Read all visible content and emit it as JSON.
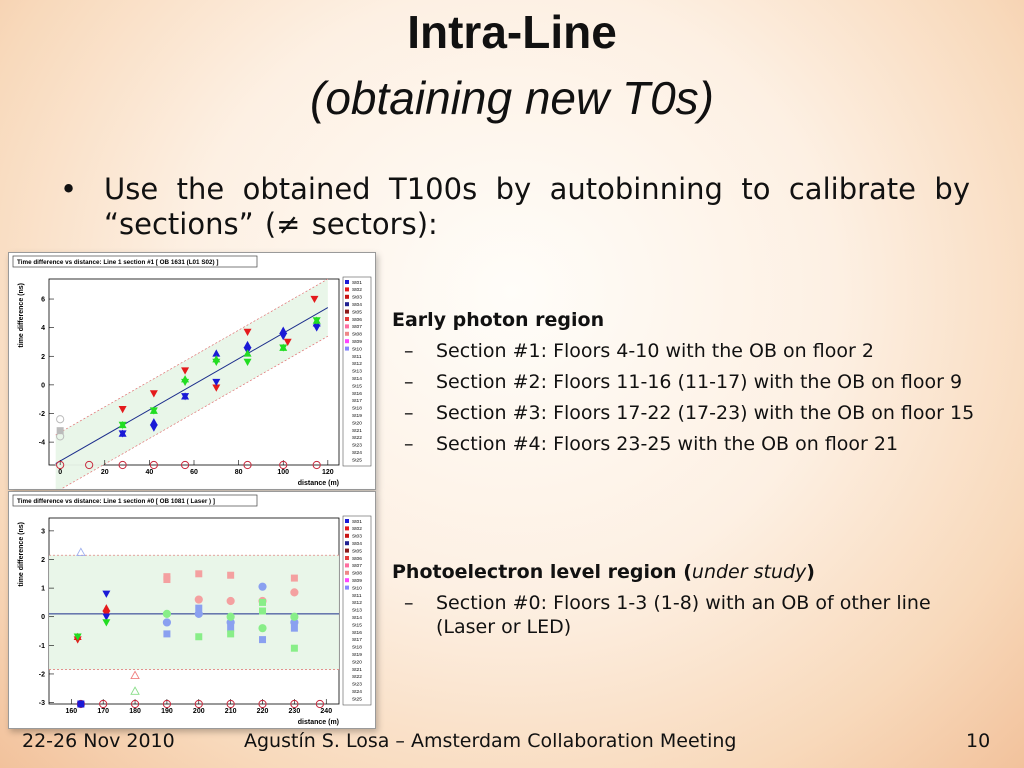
{
  "slide": {
    "title": "Intra-Line",
    "subtitle": "(obtaining new T0s)",
    "bullet": "Use the obtained T100s by autobinning to calibrate by “sections” (≠ sectors):",
    "early": {
      "heading": "Early photon region",
      "items": [
        "Section #1: Floors 4-10 with the OB on floor 2",
        "Section #2: Floors 11-16 (11-17) with the OB on floor 9",
        "Section #3: Floors 17-22 (17-23) with the OB on floor 15",
        "Section #4: Floors 23-25 with the OB on floor 21"
      ]
    },
    "photo": {
      "heading": "Photoelectron level region",
      "note": "under study",
      "items": [
        "Section #0: Floors 1-3 (1-8) with an OB of other line (Laser or LED)"
      ]
    },
    "footer": {
      "date": "22-26 Nov 2010",
      "author": "Agustín S. Losa – Amsterdam Collaboration Meeting",
      "page": "10"
    }
  },
  "chart_data": [
    {
      "type": "scatter",
      "title": "Time difference vs distance: Line 1 section #1 [ OB 1631 (L01 S02) ]",
      "xlabel": "distance (m)",
      "ylabel": "time difference (ns)",
      "xlim": [
        -5,
        125
      ],
      "ylim": [
        -5.6,
        7.4
      ],
      "xticks": [
        0,
        20,
        40,
        60,
        80,
        100,
        120
      ],
      "yticks": [
        -4,
        -2,
        0,
        2,
        4,
        6
      ],
      "legend": [
        "St01",
        "St02",
        "St03",
        "St04",
        "St05",
        "St06",
        "St07",
        "St08",
        "St09",
        "St10",
        "St11",
        "St12",
        "St13",
        "St14",
        "St15",
        "St16",
        "St17",
        "St18",
        "St19",
        "St20",
        "St21",
        "St22",
        "St23",
        "St24",
        "St25"
      ],
      "fit_line": [
        [
          -2,
          -5.5
        ],
        [
          120,
          5.4
        ]
      ],
      "band": {
        "upper": [
          [
            -2,
            -3.5
          ],
          [
            120,
            7.4
          ]
        ],
        "lower": [
          [
            -2,
            -7.5
          ],
          [
            120,
            3.4
          ]
        ]
      },
      "series": [
        {
          "color": "#e41a1c",
          "shape": "tri-down",
          "points": [
            [
              28,
              -1.7
            ],
            [
              42,
              -0.6
            ],
            [
              56,
              1.0
            ],
            [
              70,
              -0.2
            ],
            [
              84,
              3.7
            ],
            [
              102,
              3.0
            ],
            [
              114,
              6.0
            ]
          ]
        },
        {
          "color": "#1a1ad6",
          "shape": "tri-up",
          "points": [
            [
              28,
              -3.4
            ],
            [
              42,
              -2.6
            ],
            [
              56,
              -0.8
            ],
            [
              70,
              2.2
            ],
            [
              84,
              2.8
            ],
            [
              100,
              3.8
            ],
            [
              115,
              4.3
            ]
          ]
        },
        {
          "color": "#1a1ad6",
          "shape": "tri-down",
          "points": [
            [
              28,
              -3.4
            ],
            [
              42,
              -3.0
            ],
            [
              56,
              -0.8
            ],
            [
              70,
              0.2
            ],
            [
              84,
              2.4
            ],
            [
              100,
              3.4
            ],
            [
              115,
              4.0
            ]
          ]
        },
        {
          "color": "#22dd22",
          "shape": "tri-up",
          "points": [
            [
              28,
              -2.8
            ],
            [
              42,
              -1.8
            ],
            [
              56,
              0.4
            ],
            [
              70,
              1.8
            ],
            [
              84,
              2.2
            ],
            [
              100,
              2.6
            ],
            [
              115,
              4.5
            ]
          ]
        },
        {
          "color": "#22dd22",
          "shape": "tri-down",
          "points": [
            [
              28,
              -2.8
            ],
            [
              42,
              -1.8
            ],
            [
              56,
              0.2
            ],
            [
              70,
              1.6
            ],
            [
              84,
              1.6
            ],
            [
              100,
              2.6
            ],
            [
              115,
              4.5
            ]
          ]
        },
        {
          "color": "#bbbbbb",
          "shape": "circle",
          "points": [
            [
              0,
              -2.4
            ],
            [
              0,
              -3.6
            ]
          ]
        },
        {
          "color": "#bbbbbb",
          "shape": "square",
          "points": [
            [
              0,
              -3.2
            ]
          ]
        },
        {
          "color": "#c8283c",
          "shape": "circle",
          "points": [
            [
              0,
              -5.6
            ],
            [
              13,
              -5.6
            ],
            [
              28,
              -5.6
            ],
            [
              42,
              -5.6
            ],
            [
              56,
              -5.6
            ],
            [
              84,
              -5.6
            ],
            [
              100,
              -5.6
            ],
            [
              115,
              -5.6
            ]
          ]
        }
      ]
    },
    {
      "type": "scatter",
      "title": "Time difference vs distance: Line 1 section #0 [ OB 1081 ( Laser ) ]",
      "xlabel": "distance (m)",
      "ylabel": "time difference (ns)",
      "xlim": [
        153,
        244
      ],
      "ylim": [
        -3.05,
        3.45
      ],
      "xticks": [
        160,
        170,
        180,
        190,
        200,
        210,
        220,
        230,
        240
      ],
      "yticks": [
        -3,
        -2,
        -1,
        0,
        1,
        2,
        3
      ],
      "legend": [
        "St01",
        "St02",
        "St03",
        "St04",
        "St05",
        "St06",
        "St07",
        "St08",
        "St09",
        "St10",
        "St11",
        "St12",
        "St13",
        "St14",
        "St15",
        "St16",
        "St17",
        "St18",
        "St19",
        "St20",
        "St21",
        "St22",
        "St23",
        "St24",
        "St25"
      ],
      "fit_line": [
        [
          153,
          0.1
        ],
        [
          244,
          0.1
        ]
      ],
      "band": {
        "upper": [
          [
            153,
            2.15
          ],
          [
            244,
            2.15
          ]
        ],
        "lower": [
          [
            153,
            -1.85
          ],
          [
            244,
            -1.85
          ]
        ]
      },
      "series": [
        {
          "color": "#e41a1c",
          "shape": "tri-up",
          "points": [
            [
              162,
              -0.7
            ],
            [
              171,
              0.3
            ]
          ]
        },
        {
          "color": "#e41a1c",
          "shape": "tri-down",
          "points": [
            [
              162,
              -0.8
            ],
            [
              171,
              0.1
            ]
          ]
        },
        {
          "color": "#1a1ad6",
          "shape": "tri-down",
          "points": [
            [
              171,
              0.8
            ],
            [
              171,
              0.0
            ]
          ]
        },
        {
          "color": "#22dd22",
          "shape": "tri-down",
          "points": [
            [
              162,
              -0.7
            ],
            [
              171,
              -0.2
            ]
          ]
        },
        {
          "color": "#f4a0a0",
          "shape": "square",
          "points": [
            [
              190,
              1.4
            ],
            [
              190,
              1.3
            ],
            [
              200,
              1.5
            ],
            [
              210,
              1.45
            ],
            [
              230,
              1.35
            ]
          ]
        },
        {
          "color": "#f4a0a0",
          "shape": "circle",
          "points": [
            [
              200,
              0.6
            ],
            [
              210,
              0.55
            ],
            [
              220,
              0.55
            ],
            [
              230,
              0.85
            ]
          ]
        },
        {
          "color": "#8aa0f0",
          "shape": "square",
          "points": [
            [
              190,
              -0.6
            ],
            [
              200,
              0.3
            ],
            [
              210,
              -0.4
            ],
            [
              220,
              -0.8
            ],
            [
              230,
              -0.4
            ]
          ]
        },
        {
          "color": "#8aa0f0",
          "shape": "circle",
          "points": [
            [
              190,
              -0.2
            ],
            [
              200,
              0.1
            ],
            [
              210,
              -0.2
            ],
            [
              220,
              1.05
            ],
            [
              230,
              -0.2
            ]
          ]
        },
        {
          "color": "#88ee88",
          "shape": "square",
          "points": [
            [
              200,
              -0.7
            ],
            [
              210,
              -0.6
            ],
            [
              220,
              0.2
            ],
            [
              230,
              -1.1
            ],
            [
              220,
              0.5
            ]
          ]
        },
        {
          "color": "#88ee88",
          "shape": "circle",
          "points": [
            [
              190,
              0.1
            ],
            [
              210,
              0.0
            ],
            [
              220,
              -0.4
            ],
            [
              230,
              0.0
            ]
          ]
        },
        {
          "color": "#9fb0ee",
          "shape": "tri-up-open",
          "points": [
            [
              163,
              2.25
            ]
          ]
        },
        {
          "color": "#f08080",
          "shape": "tri-up-open",
          "points": [
            [
              180,
              -2.05
            ]
          ]
        },
        {
          "color": "#88dd88",
          "shape": "tri-up-open",
          "points": [
            [
              180,
              -2.6
            ]
          ]
        },
        {
          "color": "#c8283c",
          "shape": "circle",
          "points": [
            [
              163,
              -3.05
            ],
            [
              170,
              -3.05
            ],
            [
              180,
              -3.05
            ],
            [
              190,
              -3.05
            ],
            [
              200,
              -3.05
            ],
            [
              210,
              -3.05
            ],
            [
              220,
              -3.05
            ],
            [
              230,
              -3.05
            ],
            [
              238,
              -3.05
            ]
          ]
        },
        {
          "color": "#1a1ad6",
          "shape": "square",
          "points": [
            [
              163,
              -3.05
            ]
          ]
        }
      ]
    }
  ]
}
